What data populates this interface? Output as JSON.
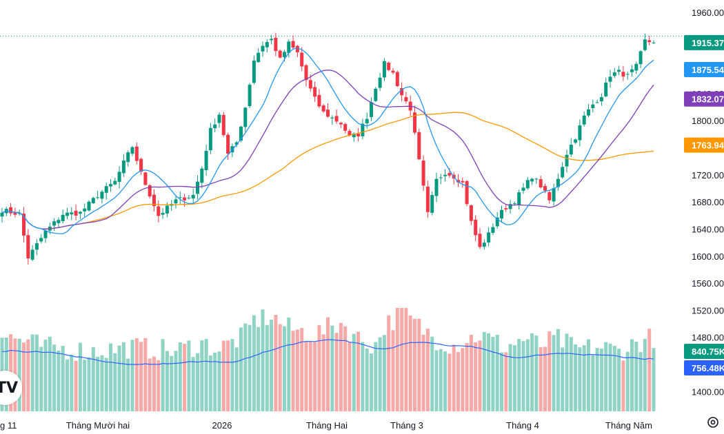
{
  "chart_data": {
    "type": "candlestick",
    "y_axis": {
      "ticks": [
        "1960.00",
        "1920.00",
        "1880.00",
        "1840.00",
        "1800.00",
        "1760.00",
        "1720.00",
        "1680.00",
        "1640.00",
        "1600.00",
        "1560.00",
        "1520.00",
        "1480.00",
        "1440.00",
        "1400.00"
      ],
      "range": [
        1380,
        1980
      ]
    },
    "x_axis": {
      "labels": [
        "g 11",
        "Tháng Mười hai",
        "2026",
        "Tháng Hai",
        "Tháng 3",
        "Tháng 4",
        "Tháng Năm"
      ]
    },
    "last_price_line": 1925,
    "price_badges": [
      {
        "text": "1915.37",
        "value": 1915.37,
        "color": "#089981"
      },
      {
        "text": "1875.54",
        "value": 1875.54,
        "color": "#2196f3"
      },
      {
        "text": "1832.07",
        "value": 1832.07,
        "color": "#7e3fb8"
      },
      {
        "text": "1763.94",
        "value": 1763.94,
        "color": "#ff9800"
      }
    ],
    "volume_badges": [
      {
        "text": "840.75K",
        "color": "#089981"
      },
      {
        "text": "756.48K",
        "color": "#2962ff"
      }
    ],
    "colors": {
      "up": "#089981",
      "down": "#f23645",
      "up_volume": "#8fd3c5",
      "down_volume": "#f7a9a7",
      "ma_short": "#2196f3",
      "ma_mid": "#7e3fb8",
      "ma_long": "#ff9800",
      "volume_ma": "#2962ff"
    },
    "anchors": [
      [
        0,
        1668
      ],
      [
        4,
        1662
      ],
      [
        6,
        1598
      ],
      [
        10,
        1636
      ],
      [
        14,
        1662
      ],
      [
        18,
        1664
      ],
      [
        22,
        1690
      ],
      [
        26,
        1710
      ],
      [
        28,
        1738
      ],
      [
        30,
        1762
      ],
      [
        32,
        1722
      ],
      [
        36,
        1660
      ],
      [
        40,
        1682
      ],
      [
        44,
        1690
      ],
      [
        46,
        1730
      ],
      [
        48,
        1786
      ],
      [
        50,
        1810
      ],
      [
        52,
        1750
      ],
      [
        54,
        1768
      ],
      [
        56,
        1820
      ],
      [
        58,
        1890
      ],
      [
        60,
        1912
      ],
      [
        62,
        1920
      ],
      [
        64,
        1890
      ],
      [
        66,
        1914
      ],
      [
        68,
        1900
      ],
      [
        70,
        1860
      ],
      [
        72,
        1832
      ],
      [
        74,
        1812
      ],
      [
        78,
        1796
      ],
      [
        80,
        1776
      ],
      [
        82,
        1780
      ],
      [
        84,
        1806
      ],
      [
        86,
        1850
      ],
      [
        88,
        1884
      ],
      [
        90,
        1870
      ],
      [
        92,
        1838
      ],
      [
        94,
        1818
      ],
      [
        96,
        1740
      ],
      [
        98,
        1662
      ],
      [
        100,
        1712
      ],
      [
        102,
        1724
      ],
      [
        104,
        1718
      ],
      [
        106,
        1708
      ],
      [
        108,
        1650
      ],
      [
        110,
        1612
      ],
      [
        112,
        1632
      ],
      [
        114,
        1658
      ],
      [
        116,
        1672
      ],
      [
        118,
        1682
      ],
      [
        120,
        1700
      ],
      [
        122,
        1718
      ],
      [
        124,
        1704
      ],
      [
        126,
        1682
      ],
      [
        128,
        1716
      ],
      [
        130,
        1752
      ],
      [
        132,
        1776
      ],
      [
        134,
        1806
      ],
      [
        136,
        1824
      ],
      [
        138,
        1838
      ],
      [
        140,
        1868
      ],
      [
        142,
        1872
      ],
      [
        144,
        1866
      ],
      [
        146,
        1880
      ],
      [
        148,
        1918
      ],
      [
        150,
        1915.37
      ]
    ],
    "volume_levels": [
      [
        0,
        0.74
      ],
      [
        10,
        0.62
      ],
      [
        20,
        0.58
      ],
      [
        30,
        0.62
      ],
      [
        40,
        0.58
      ],
      [
        46,
        0.66
      ],
      [
        50,
        0.6
      ],
      [
        56,
        0.74
      ],
      [
        58,
        0.88
      ],
      [
        62,
        0.92
      ],
      [
        66,
        0.8
      ],
      [
        72,
        0.74
      ],
      [
        78,
        0.86
      ],
      [
        82,
        0.7
      ],
      [
        86,
        0.64
      ],
      [
        88,
        0.82
      ],
      [
        92,
        0.96
      ],
      [
        96,
        0.82
      ],
      [
        100,
        0.7
      ],
      [
        104,
        0.64
      ],
      [
        110,
        0.74
      ],
      [
        116,
        0.62
      ],
      [
        120,
        0.7
      ],
      [
        124,
        0.64
      ],
      [
        128,
        0.7
      ],
      [
        132,
        0.6
      ],
      [
        138,
        0.62
      ],
      [
        142,
        0.58
      ],
      [
        146,
        0.66
      ],
      [
        150,
        0.72
      ]
    ]
  }
}
